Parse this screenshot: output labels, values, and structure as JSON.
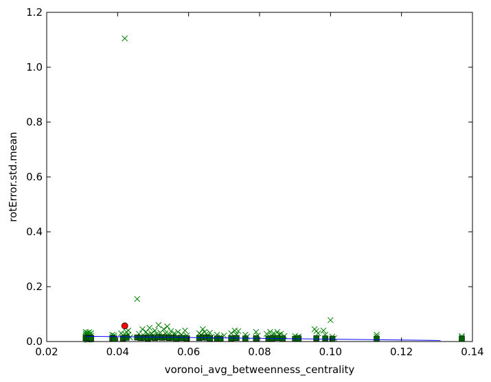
{
  "chart_data": {
    "type": "scatter",
    "title": "",
    "xlabel": "voronoi_avg_betweenness_centrality",
    "ylabel": "rotError.std.mean",
    "xlim": [
      0.02,
      0.14
    ],
    "ylim": [
      0.0,
      1.2
    ],
    "x_ticks": [
      0.02,
      0.04,
      0.06,
      0.08,
      0.1,
      0.12,
      0.14
    ],
    "x_tick_labels": [
      "0.02",
      "0.04",
      "0.06",
      "0.08",
      "0.10",
      "0.12",
      "0.14"
    ],
    "y_ticks": [
      0.0,
      0.2,
      0.4,
      0.6,
      0.8,
      1.0,
      1.2
    ],
    "y_tick_labels": [
      "0.0",
      "0.2",
      "0.4",
      "0.6",
      "0.8",
      "1.0",
      "1.2"
    ],
    "grid": false,
    "legend": "none",
    "colors": {
      "x_markers": "#008000",
      "square_markers": "#006400",
      "circle_marker": "#ff0000",
      "trend_line": "#0000ff"
    },
    "x_markers": [
      {
        "x": 0.042,
        "y": 1.105
      },
      {
        "x": 0.0455,
        "y": 0.155
      },
      {
        "x": 0.1,
        "y": 0.078
      },
      {
        "x": 0.031,
        "y": 0.035
      },
      {
        "x": 0.031,
        "y": 0.028
      },
      {
        "x": 0.031,
        "y": 0.022
      },
      {
        "x": 0.031,
        "y": 0.016
      },
      {
        "x": 0.031,
        "y": 0.01
      },
      {
        "x": 0.0315,
        "y": 0.032
      },
      {
        "x": 0.0315,
        "y": 0.025
      },
      {
        "x": 0.0315,
        "y": 0.018
      },
      {
        "x": 0.0315,
        "y": 0.012
      },
      {
        "x": 0.0315,
        "y": 0.006
      },
      {
        "x": 0.032,
        "y": 0.034
      },
      {
        "x": 0.032,
        "y": 0.026
      },
      {
        "x": 0.032,
        "y": 0.019
      },
      {
        "x": 0.032,
        "y": 0.013
      },
      {
        "x": 0.032,
        "y": 0.007
      },
      {
        "x": 0.0325,
        "y": 0.03
      },
      {
        "x": 0.0325,
        "y": 0.021
      },
      {
        "x": 0.0325,
        "y": 0.014
      },
      {
        "x": 0.0325,
        "y": 0.008
      },
      {
        "x": 0.0385,
        "y": 0.025
      },
      {
        "x": 0.0385,
        "y": 0.018
      },
      {
        "x": 0.0385,
        "y": 0.012
      },
      {
        "x": 0.039,
        "y": 0.022
      },
      {
        "x": 0.039,
        "y": 0.015
      },
      {
        "x": 0.041,
        "y": 0.03
      },
      {
        "x": 0.0415,
        "y": 0.022
      },
      {
        "x": 0.042,
        "y": 0.028
      },
      {
        "x": 0.042,
        "y": 0.018
      },
      {
        "x": 0.0425,
        "y": 0.035
      },
      {
        "x": 0.043,
        "y": 0.04
      },
      {
        "x": 0.043,
        "y": 0.025
      },
      {
        "x": 0.0435,
        "y": 0.015
      },
      {
        "x": 0.046,
        "y": 0.028
      },
      {
        "x": 0.047,
        "y": 0.045
      },
      {
        "x": 0.0475,
        "y": 0.02
      },
      {
        "x": 0.048,
        "y": 0.035
      },
      {
        "x": 0.0485,
        "y": 0.025
      },
      {
        "x": 0.049,
        "y": 0.05
      },
      {
        "x": 0.0495,
        "y": 0.03
      },
      {
        "x": 0.05,
        "y": 0.022
      },
      {
        "x": 0.0505,
        "y": 0.04
      },
      {
        "x": 0.051,
        "y": 0.028
      },
      {
        "x": 0.0515,
        "y": 0.06
      },
      {
        "x": 0.052,
        "y": 0.033
      },
      {
        "x": 0.0525,
        "y": 0.02
      },
      {
        "x": 0.053,
        "y": 0.045
      },
      {
        "x": 0.0535,
        "y": 0.03
      },
      {
        "x": 0.054,
        "y": 0.055
      },
      {
        "x": 0.0545,
        "y": 0.025
      },
      {
        "x": 0.055,
        "y": 0.038
      },
      {
        "x": 0.0555,
        "y": 0.02
      },
      {
        "x": 0.056,
        "y": 0.03
      },
      {
        "x": 0.0565,
        "y": 0.015
      },
      {
        "x": 0.057,
        "y": 0.035
      },
      {
        "x": 0.058,
        "y": 0.025
      },
      {
        "x": 0.0585,
        "y": 0.018
      },
      {
        "x": 0.059,
        "y": 0.04
      },
      {
        "x": 0.0595,
        "y": 0.022
      },
      {
        "x": 0.063,
        "y": 0.03
      },
      {
        "x": 0.0635,
        "y": 0.025
      },
      {
        "x": 0.064,
        "y": 0.045
      },
      {
        "x": 0.0645,
        "y": 0.035
      },
      {
        "x": 0.065,
        "y": 0.028
      },
      {
        "x": 0.0655,
        "y": 0.02
      },
      {
        "x": 0.066,
        "y": 0.032
      },
      {
        "x": 0.0665,
        "y": 0.018
      },
      {
        "x": 0.068,
        "y": 0.025
      },
      {
        "x": 0.069,
        "y": 0.018
      },
      {
        "x": 0.07,
        "y": 0.022
      },
      {
        "x": 0.072,
        "y": 0.03
      },
      {
        "x": 0.073,
        "y": 0.04
      },
      {
        "x": 0.0735,
        "y": 0.025
      },
      {
        "x": 0.074,
        "y": 0.038
      },
      {
        "x": 0.076,
        "y": 0.025
      },
      {
        "x": 0.0765,
        "y": 0.018
      },
      {
        "x": 0.079,
        "y": 0.035
      },
      {
        "x": 0.0795,
        "y": 0.022
      },
      {
        "x": 0.082,
        "y": 0.028
      },
      {
        "x": 0.083,
        "y": 0.035
      },
      {
        "x": 0.0835,
        "y": 0.02
      },
      {
        "x": 0.084,
        "y": 0.03
      },
      {
        "x": 0.085,
        "y": 0.035
      },
      {
        "x": 0.0855,
        "y": 0.025
      },
      {
        "x": 0.086,
        "y": 0.028
      },
      {
        "x": 0.087,
        "y": 0.02
      },
      {
        "x": 0.09,
        "y": 0.02
      },
      {
        "x": 0.0905,
        "y": 0.015
      },
      {
        "x": 0.091,
        "y": 0.018
      },
      {
        "x": 0.0955,
        "y": 0.045
      },
      {
        "x": 0.096,
        "y": 0.038
      },
      {
        "x": 0.0965,
        "y": 0.03
      },
      {
        "x": 0.098,
        "y": 0.04
      },
      {
        "x": 0.0985,
        "y": 0.025
      },
      {
        "x": 0.1005,
        "y": 0.018
      },
      {
        "x": 0.101,
        "y": 0.012
      },
      {
        "x": 0.113,
        "y": 0.025
      },
      {
        "x": 0.113,
        "y": 0.018
      },
      {
        "x": 0.137,
        "y": 0.02
      },
      {
        "x": 0.137,
        "y": 0.015
      }
    ],
    "square_markers": [
      {
        "x": 0.031,
        "y": 0.013
      },
      {
        "x": 0.0315,
        "y": 0.011
      },
      {
        "x": 0.032,
        "y": 0.014
      },
      {
        "x": 0.0325,
        "y": 0.012
      },
      {
        "x": 0.0385,
        "y": 0.012
      },
      {
        "x": 0.039,
        "y": 0.01
      },
      {
        "x": 0.0415,
        "y": 0.012
      },
      {
        "x": 0.0425,
        "y": 0.014
      },
      {
        "x": 0.0455,
        "y": 0.015
      },
      {
        "x": 0.0465,
        "y": 0.013
      },
      {
        "x": 0.0475,
        "y": 0.014
      },
      {
        "x": 0.0485,
        "y": 0.012
      },
      {
        "x": 0.0495,
        "y": 0.015
      },
      {
        "x": 0.0505,
        "y": 0.013
      },
      {
        "x": 0.0515,
        "y": 0.016
      },
      {
        "x": 0.0525,
        "y": 0.014
      },
      {
        "x": 0.0535,
        "y": 0.015
      },
      {
        "x": 0.0545,
        "y": 0.013
      },
      {
        "x": 0.0555,
        "y": 0.014
      },
      {
        "x": 0.0565,
        "y": 0.012
      },
      {
        "x": 0.058,
        "y": 0.013
      },
      {
        "x": 0.0595,
        "y": 0.012
      },
      {
        "x": 0.063,
        "y": 0.013
      },
      {
        "x": 0.064,
        "y": 0.015
      },
      {
        "x": 0.065,
        "y": 0.014
      },
      {
        "x": 0.066,
        "y": 0.012
      },
      {
        "x": 0.068,
        "y": 0.011
      },
      {
        "x": 0.069,
        "y": 0.01
      },
      {
        "x": 0.072,
        "y": 0.012
      },
      {
        "x": 0.0735,
        "y": 0.013
      },
      {
        "x": 0.076,
        "y": 0.011
      },
      {
        "x": 0.079,
        "y": 0.012
      },
      {
        "x": 0.0825,
        "y": 0.011
      },
      {
        "x": 0.0835,
        "y": 0.012
      },
      {
        "x": 0.085,
        "y": 0.013
      },
      {
        "x": 0.0865,
        "y": 0.011
      },
      {
        "x": 0.09,
        "y": 0.01
      },
      {
        "x": 0.091,
        "y": 0.011
      },
      {
        "x": 0.096,
        "y": 0.012
      },
      {
        "x": 0.0985,
        "y": 0.011
      },
      {
        "x": 0.1005,
        "y": 0.01
      },
      {
        "x": 0.113,
        "y": 0.01
      },
      {
        "x": 0.137,
        "y": 0.01
      }
    ],
    "circle_markers": [
      {
        "x": 0.042,
        "y": 0.057
      }
    ],
    "trend_line": [
      {
        "x": 0.031,
        "y": 0.019
      },
      {
        "x": 0.131,
        "y": 0.004
      }
    ]
  }
}
